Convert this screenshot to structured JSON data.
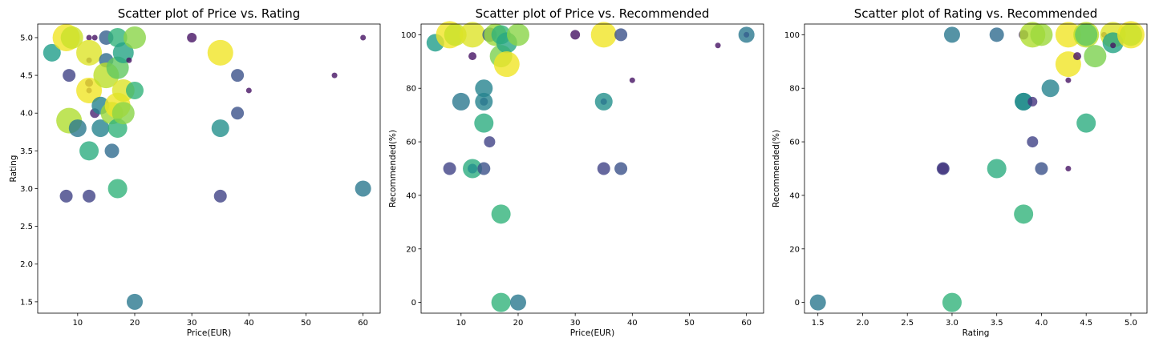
{
  "chart_data": [
    {
      "type": "scatter",
      "title": "Scatter plot of Price vs. Rating",
      "xlabel": "Price(EUR)",
      "ylabel": "Rating",
      "xlim": [
        3,
        63
      ],
      "ylim": [
        1.35,
        5.18
      ],
      "xticks": [
        "10",
        "20",
        "30",
        "40",
        "50",
        "60"
      ],
      "xtick_values": [
        10,
        20,
        30,
        40,
        50,
        60
      ],
      "yticks": [
        "1.5",
        "2.0",
        "2.5",
        "3.0",
        "3.5",
        "4.0",
        "4.5",
        "5.0"
      ],
      "ytick_values": [
        1.5,
        2.0,
        2.5,
        3.0,
        3.5,
        4.0,
        4.5,
        5.0
      ],
      "grid": false,
      "points": [
        {
          "x": 5.5,
          "y": 4.8,
          "r": 11,
          "c": 0.55
        },
        {
          "x": 8,
          "y": 5.0,
          "r": 17,
          "c": 0.98
        },
        {
          "x": 9,
          "y": 5.0,
          "r": 14,
          "c": 0.92
        },
        {
          "x": 8.5,
          "y": 4.5,
          "r": 8,
          "c": 0.2
        },
        {
          "x": 8,
          "y": 2.9,
          "r": 8,
          "c": 0.2
        },
        {
          "x": 8.5,
          "y": 3.9,
          "r": 16,
          "c": 0.88
        },
        {
          "x": 10,
          "y": 3.8,
          "r": 11,
          "c": 0.4
        },
        {
          "x": 12,
          "y": 5.0,
          "r": 3.5,
          "c": 0.05
        },
        {
          "x": 13,
          "y": 5.0,
          "r": 3.5,
          "c": 0.05
        },
        {
          "x": 12,
          "y": 4.7,
          "r": 3.5,
          "c": 0.05
        },
        {
          "x": 12,
          "y": 4.4,
          "r": 5,
          "c": 0.05
        },
        {
          "x": 12,
          "y": 4.3,
          "r": 3.5,
          "c": 0.05
        },
        {
          "x": 13,
          "y": 4.0,
          "r": 6,
          "c": 0.1
        },
        {
          "x": 12,
          "y": 2.9,
          "r": 8,
          "c": 0.2
        },
        {
          "x": 12,
          "y": 4.3,
          "r": 16,
          "c": 0.98
        },
        {
          "x": 12,
          "y": 4.8,
          "r": 16,
          "c": 0.95
        },
        {
          "x": 12,
          "y": 3.5,
          "r": 12,
          "c": 0.62
        },
        {
          "x": 14,
          "y": 4.1,
          "r": 11,
          "c": 0.45
        },
        {
          "x": 14,
          "y": 3.8,
          "r": 11,
          "c": 0.45
        },
        {
          "x": 15,
          "y": 5.0,
          "r": 9,
          "c": 0.3
        },
        {
          "x": 15,
          "y": 4.7,
          "r": 9,
          "c": 0.35
        },
        {
          "x": 15,
          "y": 4.5,
          "r": 16,
          "c": 0.9
        },
        {
          "x": 16,
          "y": 4.0,
          "r": 14,
          "c": 0.85
        },
        {
          "x": 16,
          "y": 3.5,
          "r": 9,
          "c": 0.35
        },
        {
          "x": 17,
          "y": 5.0,
          "r": 12,
          "c": 0.65
        },
        {
          "x": 17,
          "y": 4.6,
          "r": 14,
          "c": 0.75
        },
        {
          "x": 17,
          "y": 4.1,
          "r": 16,
          "c": 0.98
        },
        {
          "x": 17,
          "y": 3.8,
          "r": 12,
          "c": 0.65
        },
        {
          "x": 17,
          "y": 3.0,
          "r": 12,
          "c": 0.65
        },
        {
          "x": 18,
          "y": 4.8,
          "r": 13,
          "c": 0.58
        },
        {
          "x": 18,
          "y": 4.3,
          "r": 14,
          "c": 0.95
        },
        {
          "x": 18,
          "y": 4.0,
          "r": 14,
          "c": 0.82
        },
        {
          "x": 19,
          "y": 4.7,
          "r": 3.5,
          "c": 0.05
        },
        {
          "x": 20,
          "y": 5.0,
          "r": 14,
          "c": 0.82
        },
        {
          "x": 20,
          "y": 4.3,
          "r": 11,
          "c": 0.65
        },
        {
          "x": 20,
          "y": 1.5,
          "r": 10,
          "c": 0.4
        },
        {
          "x": 30,
          "y": 5.0,
          "r": 6,
          "c": 0.05
        },
        {
          "x": 35,
          "y": 4.8,
          "r": 16,
          "c": 0.98
        },
        {
          "x": 35,
          "y": 3.8,
          "r": 11,
          "c": 0.5
        },
        {
          "x": 35,
          "y": 2.9,
          "r": 8,
          "c": 0.2
        },
        {
          "x": 38,
          "y": 4.5,
          "r": 8,
          "c": 0.25
        },
        {
          "x": 38,
          "y": 4.0,
          "r": 8,
          "c": 0.25
        },
        {
          "x": 40,
          "y": 4.3,
          "r": 3.5,
          "c": 0.05
        },
        {
          "x": 55,
          "y": 4.5,
          "r": 3.5,
          "c": 0.05
        },
        {
          "x": 60,
          "y": 5.0,
          "r": 3.5,
          "c": 0.05
        },
        {
          "x": 60,
          "y": 3.0,
          "r": 10,
          "c": 0.4
        }
      ]
    },
    {
      "type": "scatter",
      "title": "Scatter plot of Price vs. Recommended",
      "xlabel": "Price(EUR)",
      "ylabel": "Recommended(%)",
      "xlim": [
        3,
        63
      ],
      "ylim": [
        -4,
        104
      ],
      "xticks": [
        "10",
        "20",
        "30",
        "40",
        "50",
        "60"
      ],
      "xtick_values": [
        10,
        20,
        30,
        40,
        50,
        60
      ],
      "yticks": [
        "0",
        "20",
        "40",
        "60",
        "80",
        "100"
      ],
      "ytick_values": [
        0,
        20,
        40,
        60,
        80,
        100
      ],
      "grid": false,
      "points": [
        {
          "x": 5.5,
          "y": 97,
          "r": 11,
          "c": 0.55
        },
        {
          "x": 8,
          "y": 100,
          "r": 17,
          "c": 0.98
        },
        {
          "x": 9,
          "y": 100,
          "r": 14,
          "c": 0.92
        },
        {
          "x": 8,
          "y": 50,
          "r": 8,
          "c": 0.2
        },
        {
          "x": 10,
          "y": 75,
          "r": 11,
          "c": 0.4
        },
        {
          "x": 12,
          "y": 100,
          "r": 16,
          "c": 0.95
        },
        {
          "x": 12,
          "y": 92,
          "r": 5,
          "c": 0.05
        },
        {
          "x": 12,
          "y": 50,
          "r": 12,
          "c": 0.62
        },
        {
          "x": 12,
          "y": 50,
          "r": 6,
          "c": 0.5
        },
        {
          "x": 14,
          "y": 80,
          "r": 11,
          "c": 0.45
        },
        {
          "x": 14,
          "y": 75,
          "r": 11,
          "c": 0.45
        },
        {
          "x": 14,
          "y": 75,
          "r": 5,
          "c": 0.4
        },
        {
          "x": 14,
          "y": 67,
          "r": 12,
          "c": 0.62
        },
        {
          "x": 14,
          "y": 50,
          "r": 8,
          "c": 0.25
        },
        {
          "x": 15,
          "y": 100,
          "r": 9,
          "c": 0.3
        },
        {
          "x": 15,
          "y": 60,
          "r": 7,
          "c": 0.2
        },
        {
          "x": 16,
          "y": 100,
          "r": 14,
          "c": 0.85
        },
        {
          "x": 17,
          "y": 100,
          "r": 12,
          "c": 0.65
        },
        {
          "x": 17,
          "y": 92,
          "r": 14,
          "c": 0.8
        },
        {
          "x": 18,
          "y": 97,
          "r": 13,
          "c": 0.6
        },
        {
          "x": 18,
          "y": 89,
          "r": 16,
          "c": 0.98
        },
        {
          "x": 17,
          "y": 33,
          "r": 12,
          "c": 0.65
        },
        {
          "x": 17,
          "y": 0,
          "r": 12,
          "c": 0.65
        },
        {
          "x": 20,
          "y": 100,
          "r": 14,
          "c": 0.82
        },
        {
          "x": 20,
          "y": 0,
          "r": 10,
          "c": 0.4
        },
        {
          "x": 30,
          "y": 100,
          "r": 6,
          "c": 0.05
        },
        {
          "x": 35,
          "y": 100,
          "r": 16,
          "c": 0.98
        },
        {
          "x": 35,
          "y": 75,
          "r": 11,
          "c": 0.5
        },
        {
          "x": 35,
          "y": 75,
          "r": 4,
          "c": 0.4
        },
        {
          "x": 35,
          "y": 50,
          "r": 8,
          "c": 0.2
        },
        {
          "x": 38,
          "y": 100,
          "r": 8,
          "c": 0.25
        },
        {
          "x": 38,
          "y": 50,
          "r": 8,
          "c": 0.25
        },
        {
          "x": 40,
          "y": 83,
          "r": 3.5,
          "c": 0.05
        },
        {
          "x": 55,
          "y": 96,
          "r": 3.5,
          "c": 0.05
        },
        {
          "x": 60,
          "y": 100,
          "r": 10,
          "c": 0.4
        },
        {
          "x": 60,
          "y": 100,
          "r": 3.5,
          "c": 0.3
        }
      ]
    },
    {
      "type": "scatter",
      "title": "Scatter plot of Rating vs. Recommended",
      "xlabel": "Rating",
      "ylabel": "Recommended(%)",
      "xlim": [
        1.35,
        5.18
      ],
      "ylim": [
        -4,
        104
      ],
      "xticks": [
        "1.5",
        "2.0",
        "2.5",
        "3.0",
        "3.5",
        "4.0",
        "4.5",
        "5.0"
      ],
      "xtick_values": [
        1.5,
        2.0,
        2.5,
        3.0,
        3.5,
        4.0,
        4.5,
        5.0
      ],
      "yticks": [
        "0",
        "20",
        "40",
        "60",
        "80",
        "100"
      ],
      "ytick_values": [
        0,
        20,
        40,
        60,
        80,
        100
      ],
      "grid": false,
      "points": [
        {
          "x": 1.5,
          "y": 0,
          "r": 10,
          "c": 0.4
        },
        {
          "x": 2.9,
          "y": 50,
          "r": 8,
          "c": 0.2
        },
        {
          "x": 2.9,
          "y": 50,
          "r": 7,
          "c": 0.15
        },
        {
          "x": 3.0,
          "y": 100,
          "r": 10,
          "c": 0.4
        },
        {
          "x": 3.0,
          "y": 0,
          "r": 12,
          "c": 0.65
        },
        {
          "x": 3.5,
          "y": 100,
          "r": 9,
          "c": 0.35
        },
        {
          "x": 3.5,
          "y": 50,
          "r": 12,
          "c": 0.62
        },
        {
          "x": 3.8,
          "y": 100,
          "r": 6,
          "c": 0.1
        },
        {
          "x": 3.8,
          "y": 75,
          "r": 11,
          "c": 0.45
        },
        {
          "x": 3.8,
          "y": 75,
          "r": 11,
          "c": 0.5
        },
        {
          "x": 3.8,
          "y": 33,
          "r": 12,
          "c": 0.65
        },
        {
          "x": 3.9,
          "y": 100,
          "r": 16,
          "c": 0.88
        },
        {
          "x": 3.9,
          "y": 75,
          "r": 6,
          "c": 0.15
        },
        {
          "x": 3.9,
          "y": 60,
          "r": 7,
          "c": 0.2
        },
        {
          "x": 4.0,
          "y": 100,
          "r": 14,
          "c": 0.85
        },
        {
          "x": 4.0,
          "y": 50,
          "r": 8,
          "c": 0.25
        },
        {
          "x": 4.1,
          "y": 80,
          "r": 11,
          "c": 0.45
        },
        {
          "x": 4.3,
          "y": 100,
          "r": 16,
          "c": 0.98
        },
        {
          "x": 4.3,
          "y": 89,
          "r": 16,
          "c": 0.98
        },
        {
          "x": 4.3,
          "y": 83,
          "r": 3.5,
          "c": 0.05
        },
        {
          "x": 4.3,
          "y": 50,
          "r": 3.5,
          "c": 0.05
        },
        {
          "x": 4.4,
          "y": 92,
          "r": 5,
          "c": 0.05
        },
        {
          "x": 4.5,
          "y": 100,
          "r": 16,
          "c": 0.9
        },
        {
          "x": 4.5,
          "y": 100,
          "r": 14,
          "c": 0.75
        },
        {
          "x": 4.5,
          "y": 67,
          "r": 12,
          "c": 0.62
        },
        {
          "x": 4.6,
          "y": 92,
          "r": 14,
          "c": 0.8
        },
        {
          "x": 4.7,
          "y": 100,
          "r": 3.5,
          "c": 0.05
        },
        {
          "x": 4.8,
          "y": 100,
          "r": 16,
          "c": 0.95
        },
        {
          "x": 4.8,
          "y": 97,
          "r": 13,
          "c": 0.58
        },
        {
          "x": 4.8,
          "y": 96,
          "r": 3.5,
          "c": 0.05
        },
        {
          "x": 5.0,
          "y": 100,
          "r": 17,
          "c": 0.98
        },
        {
          "x": 5.0,
          "y": 100,
          "r": 14,
          "c": 0.92
        }
      ]
    }
  ]
}
